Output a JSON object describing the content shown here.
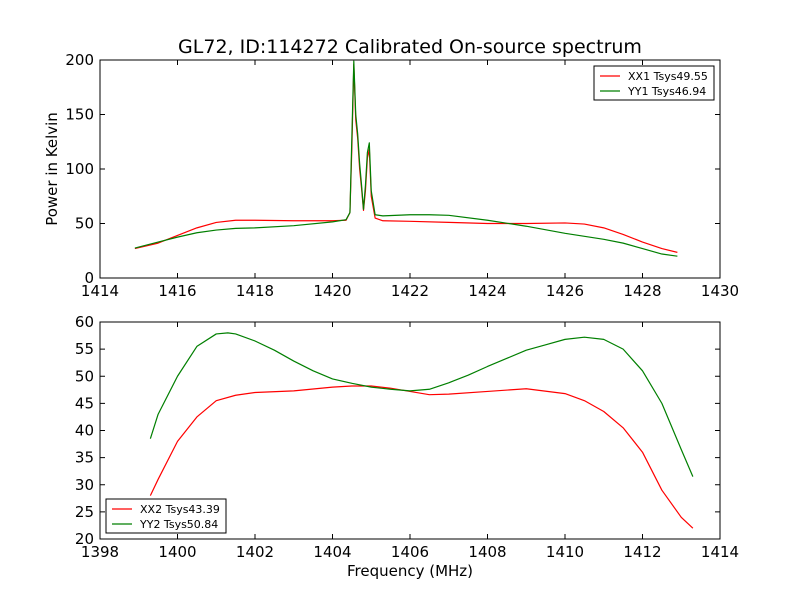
{
  "title": "GL72, ID:114272 Calibrated On-source spectrum",
  "xlabel": "Frequency (MHz)",
  "ylabel_top": "Power in Kelvin",
  "colors": {
    "xx": "#ff0000",
    "yy": "#007f00",
    "axes": "#000000"
  },
  "chart_data": [
    {
      "type": "line",
      "title": "GL72, ID:114272 Calibrated On-source spectrum",
      "xlabel": "",
      "ylabel": "Power in Kelvin",
      "xlim": [
        1414,
        1430
      ],
      "ylim": [
        0,
        200
      ],
      "xticks": [
        "1414",
        "1416",
        "1418",
        "1420",
        "1422",
        "1424",
        "1426",
        "1428",
        "1430"
      ],
      "yticks": [
        "0",
        "50",
        "100",
        "150",
        "200"
      ],
      "legend_position": "top-right",
      "grid": false,
      "series": [
        {
          "name": "XX1 Tsys49.55",
          "color": "#ff0000",
          "points": [
            [
              1414.9,
              27
            ],
            [
              1415.5,
              32
            ],
            [
              1416.0,
              39
            ],
            [
              1416.5,
              46
            ],
            [
              1417.0,
              51
            ],
            [
              1417.5,
              53
            ],
            [
              1418.0,
              53
            ],
            [
              1419.0,
              52.5
            ],
            [
              1420.0,
              52.5
            ],
            [
              1420.35,
              53
            ],
            [
              1420.45,
              60
            ],
            [
              1420.5,
              120
            ],
            [
              1420.55,
              196
            ],
            [
              1420.6,
              145
            ],
            [
              1420.65,
              128
            ],
            [
              1420.7,
              100
            ],
            [
              1420.75,
              82
            ],
            [
              1420.8,
              62
            ],
            [
              1420.85,
              80
            ],
            [
              1420.9,
              110
            ],
            [
              1420.95,
              118
            ],
            [
              1421.0,
              75
            ],
            [
              1421.1,
              55
            ],
            [
              1421.3,
              52.5
            ],
            [
              1422.0,
              52
            ],
            [
              1423.0,
              51
            ],
            [
              1424.0,
              50
            ],
            [
              1425.0,
              50
            ],
            [
              1426.0,
              50.5
            ],
            [
              1426.5,
              49.5
            ],
            [
              1427.0,
              46
            ],
            [
              1427.5,
              40
            ],
            [
              1428.0,
              33
            ],
            [
              1428.5,
              27
            ],
            [
              1428.9,
              23.5
            ]
          ]
        },
        {
          "name": "YY1 Tsys46.94",
          "color": "#007f00",
          "points": [
            [
              1414.9,
              27.5
            ],
            [
              1415.5,
              33
            ],
            [
              1416.0,
              37.5
            ],
            [
              1416.5,
              41.5
            ],
            [
              1417.0,
              44
            ],
            [
              1417.5,
              45.5
            ],
            [
              1418.0,
              46
            ],
            [
              1419.0,
              48
            ],
            [
              1420.0,
              51.5
            ],
            [
              1420.35,
              53.5
            ],
            [
              1420.45,
              60
            ],
            [
              1420.5,
              130
            ],
            [
              1420.55,
              199
            ],
            [
              1420.6,
              150
            ],
            [
              1420.65,
              132
            ],
            [
              1420.7,
              105
            ],
            [
              1420.75,
              85
            ],
            [
              1420.8,
              63
            ],
            [
              1420.85,
              85
            ],
            [
              1420.9,
              115
            ],
            [
              1420.95,
              124
            ],
            [
              1421.0,
              80
            ],
            [
              1421.1,
              58
            ],
            [
              1421.3,
              57
            ],
            [
              1422.0,
              58
            ],
            [
              1422.5,
              58
            ],
            [
              1423.0,
              57.5
            ],
            [
              1424.0,
              53
            ],
            [
              1425.0,
              47.5
            ],
            [
              1426.0,
              41
            ],
            [
              1427.0,
              35.5
            ],
            [
              1427.5,
              32
            ],
            [
              1428.0,
              27
            ],
            [
              1428.5,
              22
            ],
            [
              1428.9,
              20
            ]
          ]
        }
      ]
    },
    {
      "type": "line",
      "title": "",
      "xlabel": "Frequency (MHz)",
      "ylabel": "",
      "xlim": [
        1398,
        1414
      ],
      "ylim": [
        20,
        60
      ],
      "xticks": [
        "1398",
        "1400",
        "1402",
        "1404",
        "1406",
        "1408",
        "1410",
        "1412",
        "1414"
      ],
      "yticks": [
        "20",
        "25",
        "30",
        "35",
        "40",
        "45",
        "50",
        "55",
        "60"
      ],
      "legend_position": "bottom-left",
      "grid": false,
      "series": [
        {
          "name": "XX2 Tsys43.39",
          "color": "#ff0000",
          "points": [
            [
              1399.3,
              28
            ],
            [
              1399.5,
              31
            ],
            [
              1400.0,
              38
            ],
            [
              1400.5,
              42.5
            ],
            [
              1401.0,
              45.5
            ],
            [
              1401.5,
              46.5
            ],
            [
              1402.0,
              47
            ],
            [
              1403.0,
              47.3
            ],
            [
              1404.0,
              48
            ],
            [
              1404.5,
              48.2
            ],
            [
              1405.0,
              48.2
            ],
            [
              1405.5,
              47.8
            ],
            [
              1406.0,
              47.2
            ],
            [
              1406.5,
              46.6
            ],
            [
              1407.0,
              46.7
            ],
            [
              1408.0,
              47.2
            ],
            [
              1409.0,
              47.7
            ],
            [
              1410.0,
              46.8
            ],
            [
              1410.5,
              45.5
            ],
            [
              1411.0,
              43.5
            ],
            [
              1411.5,
              40.5
            ],
            [
              1412.0,
              36
            ],
            [
              1412.5,
              29
            ],
            [
              1413.0,
              24
            ],
            [
              1413.3,
              22
            ]
          ]
        },
        {
          "name": "YY2 Tsys50.84",
          "color": "#007f00",
          "points": [
            [
              1399.3,
              38.5
            ],
            [
              1399.5,
              43
            ],
            [
              1400.0,
              50
            ],
            [
              1400.5,
              55.5
            ],
            [
              1401.0,
              57.8
            ],
            [
              1401.3,
              58
            ],
            [
              1401.5,
              57.8
            ],
            [
              1402.0,
              56.5
            ],
            [
              1402.5,
              54.8
            ],
            [
              1403.0,
              52.8
            ],
            [
              1403.5,
              51
            ],
            [
              1404.0,
              49.5
            ],
            [
              1404.5,
              48.7
            ],
            [
              1405.0,
              48
            ],
            [
              1405.5,
              47.6
            ],
            [
              1406.0,
              47.3
            ],
            [
              1406.5,
              47.6
            ],
            [
              1407.0,
              48.8
            ],
            [
              1407.5,
              50.2
            ],
            [
              1408.0,
              51.8
            ],
            [
              1408.5,
              53.3
            ],
            [
              1409.0,
              54.8
            ],
            [
              1409.5,
              55.8
            ],
            [
              1410.0,
              56.8
            ],
            [
              1410.5,
              57.2
            ],
            [
              1411.0,
              56.8
            ],
            [
              1411.5,
              55
            ],
            [
              1412.0,
              51
            ],
            [
              1412.5,
              45
            ],
            [
              1413.0,
              36.5
            ],
            [
              1413.3,
              31.5
            ]
          ]
        }
      ]
    }
  ]
}
